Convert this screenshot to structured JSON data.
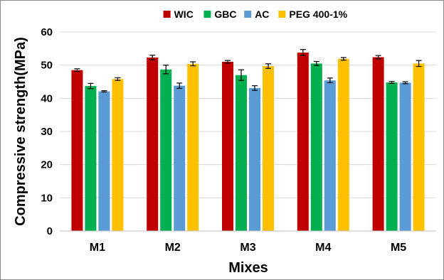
{
  "chart_data": {
    "type": "bar",
    "title": "",
    "xlabel": "Mixes",
    "ylabel": "Compressive strength(MPa)",
    "ylim": [
      0,
      60
    ],
    "yticks": [
      "0",
      "10",
      "20",
      "30",
      "40",
      "50",
      "60"
    ],
    "grid": true,
    "legend_position": "top",
    "categories": [
      "M1",
      "M2",
      "M3",
      "M4",
      "M5"
    ],
    "series": [
      {
        "name": "WIC",
        "color": "#C00000",
        "values": [
          48.5,
          52.3,
          51.0,
          53.8,
          52.4
        ],
        "errors": [
          0.4,
          0.7,
          0.4,
          0.9,
          0.5
        ]
      },
      {
        "name": "GBC",
        "color": "#00B050",
        "values": [
          43.7,
          48.7,
          47.0,
          50.5,
          44.8
        ],
        "errors": [
          0.8,
          1.3,
          1.6,
          0.6,
          0.3
        ]
      },
      {
        "name": "AC",
        "color": "#5B9BD5",
        "values": [
          42.1,
          43.8,
          43.1,
          45.4,
          44.7
        ],
        "errors": [
          0.2,
          0.8,
          0.7,
          0.7,
          0.3
        ]
      },
      {
        "name": "PEG 400-1%",
        "color": "#FFC000",
        "values": [
          45.8,
          50.4,
          49.7,
          51.9,
          50.5
        ],
        "errors": [
          0.4,
          0.6,
          0.7,
          0.4,
          0.9
        ]
      }
    ]
  }
}
